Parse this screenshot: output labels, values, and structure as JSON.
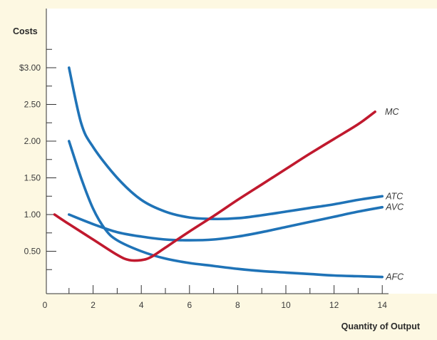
{
  "chart_data": {
    "type": "line",
    "title": "",
    "xlabel": "Quantity of Output",
    "ylabel": "Costs",
    "xlim": [
      0,
      15
    ],
    "ylim": [
      0,
      3.4
    ],
    "x_ticks": [
      0,
      2,
      4,
      6,
      8,
      10,
      12,
      14
    ],
    "x_tick_labels": [
      "0",
      "2",
      "4",
      "6",
      "8",
      "10",
      "12",
      "14"
    ],
    "y_ticks": [
      0.5,
      1.0,
      1.5,
      2.0,
      2.5,
      3.0
    ],
    "y_tick_labels": [
      "0.50",
      "1.00",
      "1.50",
      "2.00",
      "2.50",
      "$3.00"
    ],
    "grid": false,
    "series": [
      {
        "name": "MC",
        "color": "#c0192e",
        "x": [
          0.4,
          1,
          2,
          3,
          3.5,
          4,
          4.4,
          5,
          6,
          7,
          8,
          9,
          10,
          11,
          12,
          13,
          13.7
        ],
        "y": [
          1.0,
          0.87,
          0.66,
          0.45,
          0.38,
          0.38,
          0.42,
          0.55,
          0.77,
          0.98,
          1.2,
          1.41,
          1.62,
          1.83,
          2.03,
          2.23,
          2.4
        ]
      },
      {
        "name": "ATC",
        "color": "#1f73b7",
        "x": [
          1,
          1.5,
          2,
          3,
          4,
          5,
          6,
          7,
          8,
          9,
          10,
          11,
          12,
          13,
          14
        ],
        "y": [
          3.0,
          2.25,
          1.92,
          1.5,
          1.2,
          1.04,
          0.96,
          0.94,
          0.95,
          0.99,
          1.04,
          1.09,
          1.14,
          1.2,
          1.25
        ]
      },
      {
        "name": "AVC",
        "color": "#1f73b7",
        "x": [
          1,
          2,
          3,
          4,
          5,
          6,
          7,
          8,
          9,
          10,
          11,
          12,
          13,
          14
        ],
        "y": [
          1.0,
          0.87,
          0.76,
          0.7,
          0.66,
          0.65,
          0.66,
          0.7,
          0.76,
          0.83,
          0.9,
          0.97,
          1.04,
          1.1
        ]
      },
      {
        "name": "AFC",
        "color": "#1f73b7",
        "x": [
          1,
          1.5,
          2,
          2.5,
          3,
          4,
          5,
          6,
          7,
          8,
          9,
          10,
          11,
          12,
          13,
          14
        ],
        "y": [
          2.0,
          1.5,
          1.08,
          0.8,
          0.65,
          0.5,
          0.4,
          0.34,
          0.3,
          0.26,
          0.23,
          0.21,
          0.19,
          0.17,
          0.16,
          0.15
        ]
      }
    ]
  }
}
